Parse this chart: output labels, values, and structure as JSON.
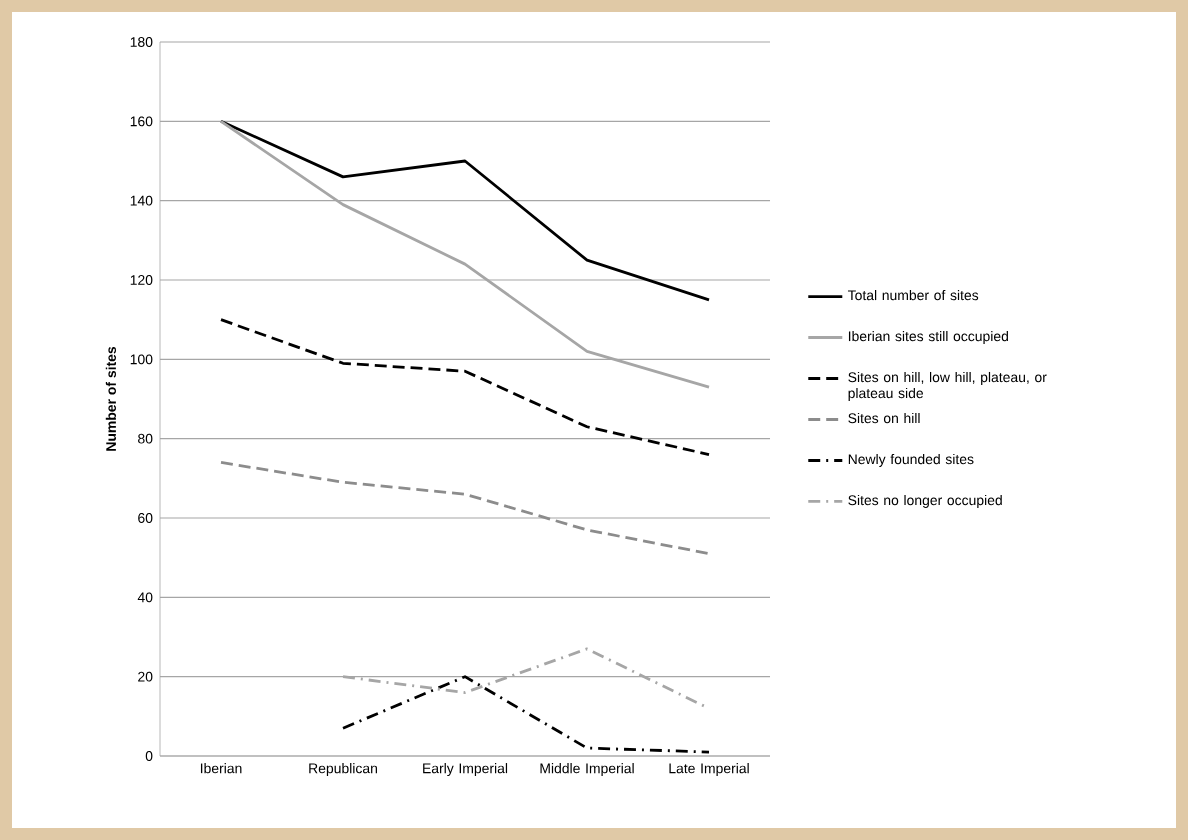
{
  "chart_data": {
    "type": "line",
    "ylabel": "Number of sites",
    "categories": [
      "Iberian",
      "Republican",
      "Early Imperial",
      "Middle Imperial",
      "Late Imperial"
    ],
    "series": [
      {
        "name": "Total number of sites",
        "color": "#000000",
        "line_style": "solid",
        "values": [
          160,
          146,
          150,
          125,
          115
        ]
      },
      {
        "name": "Iberian sites still occupied",
        "color": "#a6a6a6",
        "line_style": "solid",
        "values": [
          160,
          139,
          124,
          102,
          93
        ]
      },
      {
        "name": "Sites on hill, low hill, plateau, or plateau side",
        "color": "#000000",
        "line_style": "dashed",
        "values": [
          110,
          99,
          97,
          83,
          76
        ]
      },
      {
        "name": "Sites on hill",
        "color": "#8c8c8c",
        "line_style": "dashed",
        "values": [
          74,
          69,
          66,
          57,
          51
        ]
      },
      {
        "name": "Newly founded sites",
        "color": "#000000",
        "line_style": "dashdot",
        "values": [
          null,
          7,
          20,
          2,
          1
        ]
      },
      {
        "name": "Sites no longer occupied",
        "color": "#a6a6a6",
        "line_style": "dashdot",
        "values": [
          null,
          20,
          16,
          27,
          12
        ]
      }
    ],
    "ylim": [
      0,
      180
    ],
    "yticks": [
      0,
      20,
      40,
      60,
      80,
      100,
      120,
      140,
      160,
      180
    ],
    "grid": "y",
    "legend": "right",
    "marker": "none"
  }
}
